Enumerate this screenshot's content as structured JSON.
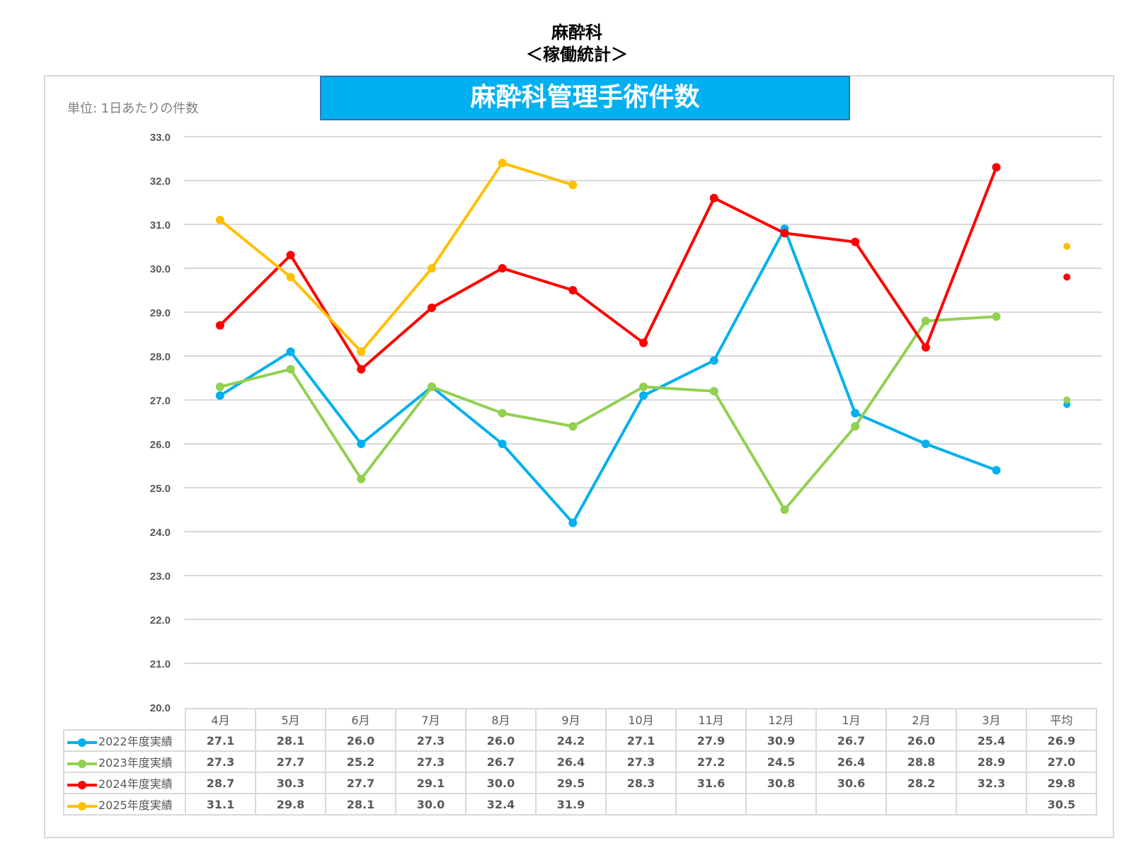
{
  "header": {
    "line1": "麻酔科",
    "line2": "＜稼働統計＞"
  },
  "chart_data": {
    "type": "line",
    "title": "麻酔科管理手術件数",
    "unit_label": "単位: 1日あたりの件数",
    "categories": [
      "4月",
      "5月",
      "6月",
      "7月",
      "8月",
      "9月",
      "10月",
      "11月",
      "12月",
      "1月",
      "2月",
      "3月"
    ],
    "average_label": "平均",
    "ylim": [
      20,
      33
    ],
    "yticks": [
      "20.0",
      "21.0",
      "22.0",
      "23.0",
      "24.0",
      "25.0",
      "26.0",
      "27.0",
      "28.0",
      "29.0",
      "30.0",
      "31.0",
      "32.0",
      "33.0"
    ],
    "grid": true,
    "legend": "table-bottom",
    "series": [
      {
        "name": "2022年度実績",
        "color": "#00b0f0",
        "values": [
          27.1,
          28.1,
          26.0,
          27.3,
          26.0,
          24.2,
          27.1,
          27.9,
          30.9,
          26.7,
          26.0,
          25.4
        ],
        "average": 26.9
      },
      {
        "name": "2023年度実績",
        "color": "#92d050",
        "values": [
          27.3,
          27.7,
          25.2,
          27.3,
          26.7,
          26.4,
          27.3,
          27.2,
          24.5,
          26.4,
          28.8,
          28.9
        ],
        "average": 27.0
      },
      {
        "name": "2024年度実績",
        "color": "#ff0000",
        "values": [
          28.7,
          30.3,
          27.7,
          29.1,
          30.0,
          29.5,
          28.3,
          31.6,
          30.8,
          30.6,
          28.2,
          32.3
        ],
        "average": 29.8
      },
      {
        "name": "2025年度実績",
        "color": "#ffc000",
        "values": [
          31.1,
          29.8,
          28.1,
          30.0,
          32.4,
          31.9,
          null,
          null,
          null,
          null,
          null,
          null
        ],
        "average": 30.5
      }
    ]
  }
}
